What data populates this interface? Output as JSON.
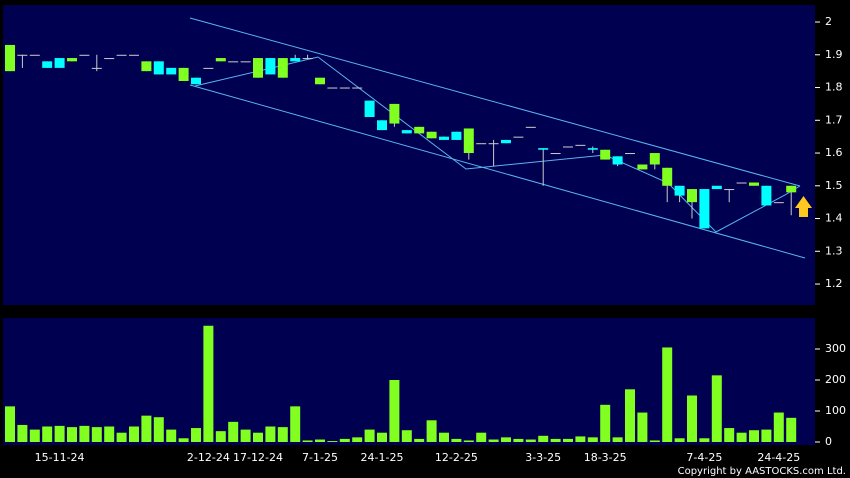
{
  "chart_data": {
    "type": "candlestick",
    "categories": [
      null,
      null,
      null,
      null,
      "15-11-24",
      null,
      null,
      null,
      null,
      null,
      null,
      null,
      null,
      null,
      null,
      null,
      "2-12-24",
      null,
      null,
      null,
      "17-12-24",
      null,
      null,
      null,
      null,
      "7-1-25",
      null,
      null,
      null,
      null,
      "24-1-25",
      null,
      null,
      null,
      null,
      null,
      "12-2-25",
      null,
      null,
      null,
      null,
      null,
      null,
      "3-3-25",
      null,
      null,
      null,
      null,
      "18-3-25",
      null,
      null,
      null,
      null,
      null,
      null,
      null,
      "7-4-25",
      null,
      null,
      null,
      null,
      null,
      "24-4-25",
      null
    ],
    "open": [
      1.85,
      1.9,
      1.9,
      1.88,
      1.89,
      1.88,
      1.9,
      1.86,
      1.89,
      1.9,
      1.9,
      1.85,
      1.88,
      1.86,
      1.82,
      1.83,
      1.86,
      1.88,
      1.88,
      1.88,
      1.83,
      1.89,
      1.83,
      1.89,
      1.89,
      1.81,
      1.8,
      1.8,
      1.8,
      1.76,
      1.7,
      1.69,
      1.67,
      1.66,
      1.645,
      1.65,
      1.665,
      1.6,
      1.63,
      1.63,
      1.64,
      1.65,
      1.68,
      1.615,
      1.6,
      1.62,
      1.625,
      1.615,
      1.58,
      1.59,
      1.6,
      1.55,
      1.565,
      1.5,
      1.5,
      1.45,
      1.49,
      1.5,
      1.49,
      1.51,
      1.5,
      1.5,
      1.45,
      1.48
    ],
    "high": [
      1.93,
      1.9,
      1.9,
      1.88,
      1.89,
      1.89,
      1.9,
      1.9,
      1.89,
      1.9,
      1.9,
      1.88,
      1.88,
      1.86,
      1.86,
      1.83,
      1.86,
      1.89,
      1.88,
      1.88,
      1.89,
      1.89,
      1.89,
      1.9,
      1.9,
      1.83,
      1.8,
      1.8,
      1.8,
      1.76,
      1.7,
      1.75,
      1.67,
      1.68,
      1.665,
      1.65,
      1.665,
      1.675,
      1.63,
      1.64,
      1.64,
      1.65,
      1.68,
      1.615,
      1.6,
      1.62,
      1.625,
      1.62,
      1.61,
      1.59,
      1.6,
      1.565,
      1.6,
      1.555,
      1.5,
      1.49,
      1.49,
      1.5,
      1.49,
      1.51,
      1.51,
      1.5,
      1.45,
      1.5
    ],
    "low": [
      1.85,
      1.86,
      1.9,
      1.86,
      1.86,
      1.88,
      1.9,
      1.85,
      1.89,
      1.9,
      1.9,
      1.85,
      1.84,
      1.84,
      1.82,
      1.81,
      1.86,
      1.88,
      1.88,
      1.88,
      1.83,
      1.84,
      1.83,
      1.88,
      1.89,
      1.81,
      1.8,
      1.8,
      1.8,
      1.71,
      1.67,
      1.68,
      1.66,
      1.66,
      1.645,
      1.64,
      1.64,
      1.58,
      1.63,
      1.56,
      1.63,
      1.65,
      1.68,
      1.5,
      1.6,
      1.62,
      1.625,
      1.6,
      1.58,
      1.56,
      1.6,
      1.55,
      1.55,
      1.45,
      1.45,
      1.4,
      1.37,
      1.49,
      1.45,
      1.51,
      1.5,
      1.44,
      1.45,
      1.41
    ],
    "close": [
      1.93,
      1.9,
      1.9,
      1.86,
      1.86,
      1.89,
      1.9,
      1.86,
      1.89,
      1.9,
      1.9,
      1.88,
      1.84,
      1.84,
      1.86,
      1.81,
      1.86,
      1.89,
      1.88,
      1.88,
      1.89,
      1.84,
      1.89,
      1.88,
      1.89,
      1.83,
      1.8,
      1.8,
      1.8,
      1.71,
      1.67,
      1.75,
      1.66,
      1.68,
      1.665,
      1.64,
      1.64,
      1.675,
      1.63,
      1.63,
      1.63,
      1.65,
      1.68,
      1.61,
      1.6,
      1.62,
      1.625,
      1.61,
      1.61,
      1.565,
      1.6,
      1.565,
      1.6,
      1.555,
      1.47,
      1.49,
      1.37,
      1.49,
      1.49,
      1.51,
      1.51,
      1.44,
      1.45,
      1.5
    ],
    "volume": [
      115,
      55,
      40,
      50,
      52,
      48,
      52,
      48,
      50,
      30,
      50,
      85,
      80,
      40,
      12,
      45,
      375,
      35,
      65,
      40,
      30,
      50,
      48,
      115,
      5,
      8,
      3,
      10,
      15,
      40,
      30,
      200,
      38,
      10,
      70,
      30,
      10,
      5,
      30,
      8,
      15,
      10,
      8,
      20,
      10,
      10,
      18,
      15,
      120,
      15,
      170,
      95,
      5,
      305,
      12,
      150,
      12,
      215,
      45,
      30,
      38,
      40,
      95,
      78
    ],
    "up_color": "#80ff20",
    "down_color": "#00ffff",
    "volume_color": "#80ff20",
    "ylim": [
      1.136,
      2.052
    ],
    "yticks": [
      1.2,
      1.3,
      1.4,
      1.5,
      1.6,
      1.7,
      1.8,
      1.9,
      2
    ],
    "volume_ylim": [
      0,
      400
    ],
    "volume_yticks": [
      0,
      100,
      200,
      300
    ],
    "copyright": "Copyright by AASTOCKS.com Ltd."
  }
}
